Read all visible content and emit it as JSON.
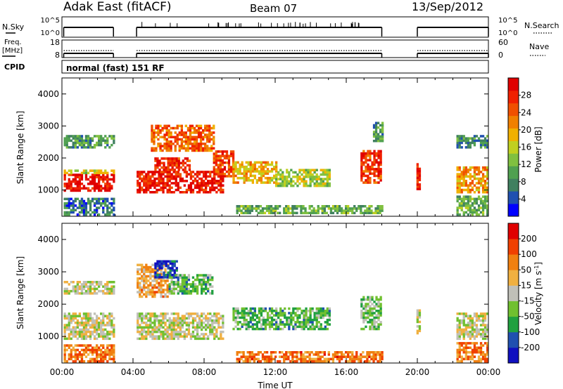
{
  "header": {
    "station": "Adak East (fitACF)",
    "beam": "Beam 07",
    "date": "13/Sep/2012"
  },
  "params": {
    "nsky_label": "N.Sky",
    "nsearch_label": "N.Search",
    "noise_ticks_left": [
      "10^5",
      "10^0"
    ],
    "noise_ticks_right": [
      "10^5",
      "10^0"
    ],
    "freq_label": "Freq.",
    "freq_unit": "[MHz]",
    "freq_ticks": [
      "18",
      "8"
    ],
    "nave_label": "Nave",
    "nave_ticks": [
      "60",
      "0"
    ],
    "cpid_label": "CPID",
    "cpid_value": "normal (fast) 151 RF"
  },
  "chart_data": [
    {
      "type": "heatmap",
      "title": "",
      "ylabel": "Slant Range [km]",
      "xlabel": "",
      "ylim": [
        180,
        4500
      ],
      "y_ticks": [
        "1000",
        "2000",
        "3000",
        "4000"
      ],
      "x_ticks": [
        "00:00",
        "04:00",
        "08:00",
        "12:00",
        "16:00",
        "20:00",
        "00:00"
      ],
      "colorbar": {
        "label": "Power [dB]",
        "ticks": [
          "4",
          "8",
          "12",
          "16",
          "20",
          "24",
          "28"
        ],
        "colors": [
          "#0000ff",
          "#2050b0",
          "#408060",
          "#50a050",
          "#80c040",
          "#c0d020",
          "#f0b000",
          "#f08000",
          "#f05000",
          "#f02000",
          "#e00000"
        ]
      },
      "regions": [
        {
          "t0": 0.1,
          "t1": 2.9,
          "r0": 950,
          "r1": 1500,
          "level": 0.93
        },
        {
          "t0": 0.1,
          "t1": 2.9,
          "r0": 1500,
          "r1": 1600,
          "level": 0.5
        },
        {
          "t0": 0.1,
          "t1": 2.9,
          "r0": 2300,
          "r1": 2700,
          "level": 0.3
        },
        {
          "t0": 0.1,
          "t1": 2.9,
          "r0": 200,
          "r1": 700,
          "level": 0.2
        },
        {
          "t0": 4.2,
          "t1": 9.0,
          "r0": 900,
          "r1": 1600,
          "level": 0.9
        },
        {
          "t0": 5.2,
          "t1": 7.2,
          "r0": 1600,
          "r1": 2000,
          "level": 0.85
        },
        {
          "t0": 5.0,
          "t1": 8.5,
          "r0": 2200,
          "r1": 3000,
          "level": 0.75
        },
        {
          "t0": 8.5,
          "t1": 9.6,
          "r0": 1400,
          "r1": 2200,
          "level": 0.82
        },
        {
          "t0": 9.6,
          "t1": 12.0,
          "r0": 1200,
          "r1": 1900,
          "level": 0.6
        },
        {
          "t0": 12.0,
          "t1": 15.0,
          "r0": 1100,
          "r1": 1600,
          "level": 0.45
        },
        {
          "t0": 9.8,
          "t1": 18.0,
          "r0": 250,
          "r1": 500,
          "level": 0.35
        },
        {
          "t0": 16.8,
          "t1": 18.0,
          "r0": 1200,
          "r1": 2200,
          "level": 0.85
        },
        {
          "t0": 17.5,
          "t1": 18.0,
          "r0": 2500,
          "r1": 3100,
          "level": 0.3
        },
        {
          "t0": 19.95,
          "t1": 20.1,
          "r0": 1000,
          "r1": 1800,
          "level": 0.9
        },
        {
          "t0": 22.2,
          "t1": 24.0,
          "r0": 900,
          "r1": 1700,
          "level": 0.65
        },
        {
          "t0": 22.2,
          "t1": 24.0,
          "r0": 200,
          "r1": 800,
          "level": 0.35
        },
        {
          "t0": 22.2,
          "t1": 24.0,
          "r0": 2300,
          "r1": 2700,
          "level": 0.25
        }
      ]
    },
    {
      "type": "heatmap",
      "title": "",
      "ylabel": "Slant Range [km]",
      "xlabel": "Time UT",
      "ylim": [
        180,
        4500
      ],
      "y_ticks": [
        "1000",
        "2000",
        "3000",
        "4000"
      ],
      "x_ticks": [
        "00:00",
        "04:00",
        "08:00",
        "12:00",
        "16:00",
        "20:00",
        "00:00"
      ],
      "colorbar": {
        "label": "Velocity [m s^-1]",
        "ticks": [
          "200",
          "100",
          "50",
          "15",
          "-15",
          "-50",
          "-100",
          "-200"
        ],
        "colors": [
          "#1010c0",
          "#2050b0",
          "#20a040",
          "#70c030",
          "#c0c0b8",
          "#f0b040",
          "#f08010",
          "#f04000",
          "#e00000"
        ]
      },
      "regions": [
        {
          "t0": 0.1,
          "t1": 2.9,
          "r0": 900,
          "r1": 1700,
          "level": 0.5
        },
        {
          "t0": 0.1,
          "t1": 2.9,
          "r0": 200,
          "r1": 700,
          "level": 0.75
        },
        {
          "t0": 0.1,
          "t1": 2.9,
          "r0": 2300,
          "r1": 2700,
          "level": 0.5
        },
        {
          "t0": 4.2,
          "t1": 9.0,
          "r0": 900,
          "r1": 1700,
          "level": 0.5
        },
        {
          "t0": 4.2,
          "t1": 6.0,
          "r0": 2200,
          "r1": 3200,
          "level": 0.65
        },
        {
          "t0": 5.2,
          "t1": 6.5,
          "r0": 2800,
          "r1": 3300,
          "level": 0.1
        },
        {
          "t0": 6.0,
          "t1": 8.5,
          "r0": 2300,
          "r1": 2900,
          "level": 0.35
        },
        {
          "t0": 9.6,
          "t1": 15.0,
          "r0": 1200,
          "r1": 1900,
          "level": 0.35
        },
        {
          "t0": 9.8,
          "t1": 18.0,
          "r0": 200,
          "r1": 500,
          "level": 0.75
        },
        {
          "t0": 16.8,
          "t1": 18.0,
          "r0": 1200,
          "r1": 2200,
          "level": 0.4
        },
        {
          "t0": 19.95,
          "t1": 20.1,
          "r0": 1000,
          "r1": 1800,
          "level": 0.5
        },
        {
          "t0": 22.2,
          "t1": 24.0,
          "r0": 900,
          "r1": 1700,
          "level": 0.5
        },
        {
          "t0": 22.2,
          "t1": 24.0,
          "r0": 200,
          "r1": 800,
          "level": 0.72
        }
      ]
    }
  ],
  "noise_segments": [
    [
      0.1,
      2.9
    ],
    [
      4.2,
      18.0
    ],
    [
      20.0,
      24.0
    ]
  ]
}
